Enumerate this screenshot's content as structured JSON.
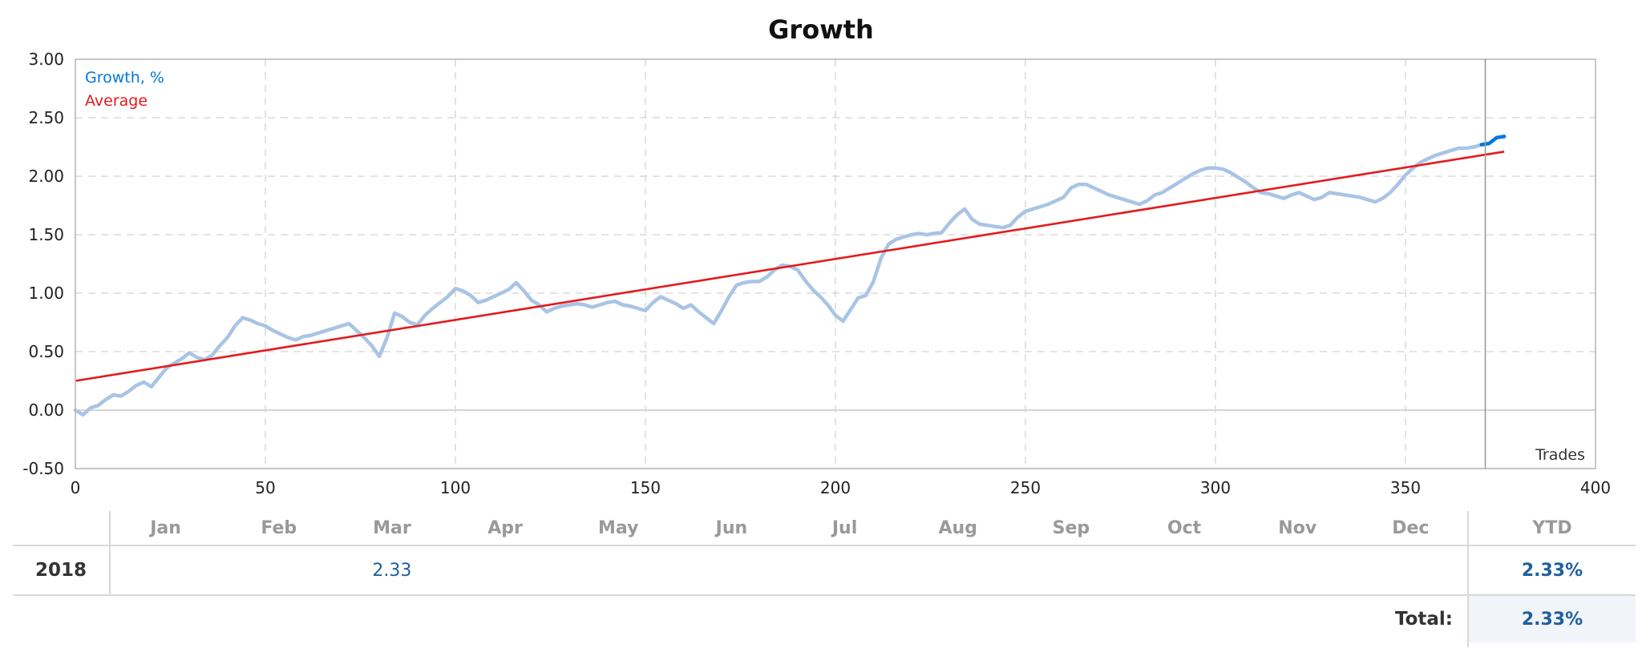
{
  "chart_data": {
    "type": "line",
    "title": "Growth",
    "xlabel": "Trades",
    "ylabel": "",
    "xlim": [
      0,
      400
    ],
    "ylim": [
      -0.5,
      3.0
    ],
    "x_ticks": [
      "0",
      "50",
      "100",
      "150",
      "200",
      "250",
      "300",
      "350",
      "400"
    ],
    "y_ticks": [
      "-0.50",
      "0.00",
      "0.50",
      "1.00",
      "1.50",
      "2.00",
      "2.50",
      "3.00"
    ],
    "grid": true,
    "legend_position": "top-left",
    "current_marker_x": 371,
    "series": [
      {
        "name": "Growth, %",
        "color": "#0077dd",
        "history_color": "#a9c4e4",
        "points": [
          [
            0,
            0.0
          ],
          [
            2,
            -0.04
          ],
          [
            4,
            0.02
          ],
          [
            6,
            0.04
          ],
          [
            8,
            0.09
          ],
          [
            10,
            0.13
          ],
          [
            12,
            0.12
          ],
          [
            14,
            0.16
          ],
          [
            16,
            0.21
          ],
          [
            18,
            0.24
          ],
          [
            20,
            0.2
          ],
          [
            22,
            0.28
          ],
          [
            24,
            0.36
          ],
          [
            26,
            0.4
          ],
          [
            28,
            0.44
          ],
          [
            30,
            0.49
          ],
          [
            32,
            0.45
          ],
          [
            34,
            0.43
          ],
          [
            36,
            0.47
          ],
          [
            38,
            0.55
          ],
          [
            40,
            0.62
          ],
          [
            42,
            0.72
          ],
          [
            44,
            0.79
          ],
          [
            46,
            0.77
          ],
          [
            48,
            0.74
          ],
          [
            50,
            0.72
          ],
          [
            52,
            0.68
          ],
          [
            54,
            0.65
          ],
          [
            56,
            0.62
          ],
          [
            58,
            0.6
          ],
          [
            60,
            0.63
          ],
          [
            62,
            0.64
          ],
          [
            64,
            0.66
          ],
          [
            66,
            0.68
          ],
          [
            68,
            0.7
          ],
          [
            70,
            0.72
          ],
          [
            72,
            0.74
          ],
          [
            74,
            0.68
          ],
          [
            76,
            0.62
          ],
          [
            78,
            0.55
          ],
          [
            80,
            0.46
          ],
          [
            82,
            0.62
          ],
          [
            84,
            0.83
          ],
          [
            86,
            0.8
          ],
          [
            88,
            0.75
          ],
          [
            90,
            0.73
          ],
          [
            92,
            0.81
          ],
          [
            94,
            0.87
          ],
          [
            96,
            0.92
          ],
          [
            98,
            0.97
          ],
          [
            100,
            1.04
          ],
          [
            102,
            1.02
          ],
          [
            104,
            0.98
          ],
          [
            106,
            0.92
          ],
          [
            108,
            0.94
          ],
          [
            110,
            0.97
          ],
          [
            112,
            1.0
          ],
          [
            114,
            1.03
          ],
          [
            116,
            1.09
          ],
          [
            118,
            1.02
          ],
          [
            120,
            0.94
          ],
          [
            122,
            0.9
          ],
          [
            124,
            0.84
          ],
          [
            126,
            0.87
          ],
          [
            128,
            0.89
          ],
          [
            130,
            0.9
          ],
          [
            132,
            0.91
          ],
          [
            134,
            0.9
          ],
          [
            136,
            0.88
          ],
          [
            138,
            0.9
          ],
          [
            140,
            0.92
          ],
          [
            142,
            0.93
          ],
          [
            144,
            0.9
          ],
          [
            146,
            0.89
          ],
          [
            148,
            0.87
          ],
          [
            150,
            0.85
          ],
          [
            152,
            0.92
          ],
          [
            154,
            0.97
          ],
          [
            156,
            0.94
          ],
          [
            158,
            0.91
          ],
          [
            160,
            0.87
          ],
          [
            162,
            0.9
          ],
          [
            164,
            0.84
          ],
          [
            166,
            0.79
          ],
          [
            168,
            0.74
          ],
          [
            170,
            0.85
          ],
          [
            172,
            0.97
          ],
          [
            174,
            1.07
          ],
          [
            176,
            1.09
          ],
          [
            178,
            1.1
          ],
          [
            180,
            1.1
          ],
          [
            182,
            1.14
          ],
          [
            184,
            1.2
          ],
          [
            186,
            1.24
          ],
          [
            188,
            1.23
          ],
          [
            190,
            1.2
          ],
          [
            192,
            1.11
          ],
          [
            194,
            1.03
          ],
          [
            196,
            0.97
          ],
          [
            198,
            0.9
          ],
          [
            200,
            0.81
          ],
          [
            202,
            0.76
          ],
          [
            204,
            0.86
          ],
          [
            206,
            0.96
          ],
          [
            208,
            0.98
          ],
          [
            210,
            1.1
          ],
          [
            212,
            1.3
          ],
          [
            214,
            1.42
          ],
          [
            216,
            1.46
          ],
          [
            218,
            1.48
          ],
          [
            220,
            1.5
          ],
          [
            222,
            1.51
          ],
          [
            224,
            1.5
          ],
          [
            226,
            1.51
          ],
          [
            228,
            1.52
          ],
          [
            230,
            1.6
          ],
          [
            232,
            1.67
          ],
          [
            234,
            1.72
          ],
          [
            236,
            1.63
          ],
          [
            238,
            1.59
          ],
          [
            240,
            1.58
          ],
          [
            242,
            1.57
          ],
          [
            244,
            1.56
          ],
          [
            246,
            1.58
          ],
          [
            248,
            1.65
          ],
          [
            250,
            1.7
          ],
          [
            252,
            1.72
          ],
          [
            254,
            1.74
          ],
          [
            256,
            1.76
          ],
          [
            258,
            1.79
          ],
          [
            260,
            1.82
          ],
          [
            262,
            1.9
          ],
          [
            264,
            1.93
          ],
          [
            266,
            1.93
          ],
          [
            268,
            1.9
          ],
          [
            270,
            1.87
          ],
          [
            272,
            1.84
          ],
          [
            274,
            1.82
          ],
          [
            276,
            1.8
          ],
          [
            278,
            1.78
          ],
          [
            280,
            1.76
          ],
          [
            282,
            1.79
          ],
          [
            284,
            1.84
          ],
          [
            286,
            1.86
          ],
          [
            288,
            1.9
          ],
          [
            290,
            1.94
          ],
          [
            292,
            1.98
          ],
          [
            294,
            2.02
          ],
          [
            296,
            2.05
          ],
          [
            298,
            2.07
          ],
          [
            300,
            2.07
          ],
          [
            302,
            2.06
          ],
          [
            304,
            2.03
          ],
          [
            306,
            1.99
          ],
          [
            308,
            1.95
          ],
          [
            310,
            1.9
          ],
          [
            312,
            1.86
          ],
          [
            314,
            1.85
          ],
          [
            316,
            1.83
          ],
          [
            318,
            1.81
          ],
          [
            320,
            1.84
          ],
          [
            322,
            1.86
          ],
          [
            324,
            1.83
          ],
          [
            326,
            1.8
          ],
          [
            328,
            1.82
          ],
          [
            330,
            1.86
          ],
          [
            332,
            1.85
          ],
          [
            334,
            1.84
          ],
          [
            336,
            1.83
          ],
          [
            338,
            1.82
          ],
          [
            340,
            1.8
          ],
          [
            342,
            1.78
          ],
          [
            344,
            1.81
          ],
          [
            346,
            1.86
          ],
          [
            348,
            1.93
          ],
          [
            350,
            2.01
          ],
          [
            352,
            2.07
          ],
          [
            354,
            2.12
          ],
          [
            356,
            2.15
          ],
          [
            358,
            2.18
          ],
          [
            360,
            2.2
          ],
          [
            362,
            2.22
          ],
          [
            364,
            2.24
          ],
          [
            366,
            2.24
          ],
          [
            368,
            2.25
          ],
          [
            370,
            2.27
          ],
          [
            372,
            2.28
          ],
          [
            374,
            2.33
          ],
          [
            376,
            2.34
          ]
        ]
      },
      {
        "name": "Average",
        "color": "#e41a1c",
        "points": [
          [
            0,
            0.25
          ],
          [
            376,
            2.21
          ]
        ]
      }
    ]
  },
  "monthly_table": {
    "columns": [
      "Jan",
      "Feb",
      "Mar",
      "Apr",
      "May",
      "Jun",
      "Jul",
      "Aug",
      "Sep",
      "Oct",
      "Nov",
      "Dec"
    ],
    "ytd_header": "YTD",
    "rows": [
      {
        "year": "2018",
        "months": [
          "",
          "",
          "2.33",
          "",
          "",
          "",
          "",
          "",
          "",
          "",
          "",
          ""
        ],
        "ytd": "2.33%"
      }
    ],
    "total_label": "Total:",
    "total_value": "2.33%"
  }
}
